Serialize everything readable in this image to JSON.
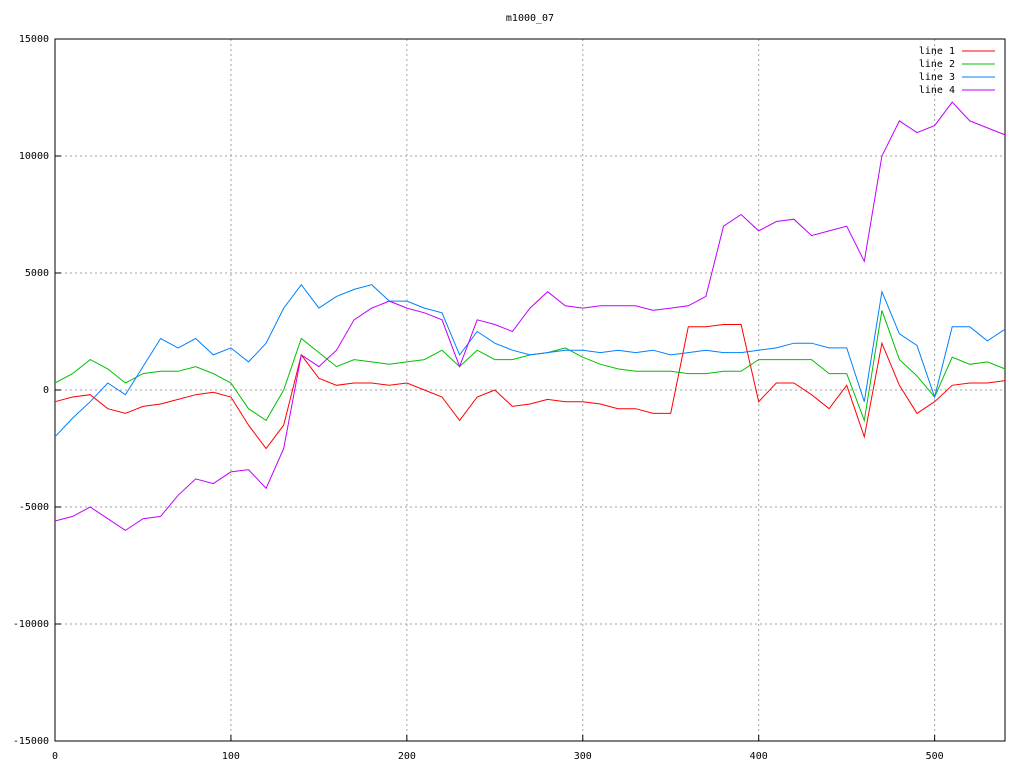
{
  "chart_data": {
    "type": "line",
    "title": "m1000_07",
    "x": [
      0,
      10,
      20,
      30,
      40,
      50,
      60,
      70,
      80,
      90,
      100,
      110,
      120,
      130,
      140,
      150,
      160,
      170,
      180,
      190,
      200,
      210,
      220,
      230,
      240,
      250,
      260,
      270,
      280,
      290,
      300,
      310,
      320,
      330,
      340,
      350,
      360,
      370,
      380,
      390,
      400,
      410,
      420,
      430,
      440,
      450,
      460,
      470,
      480,
      490,
      500,
      510,
      520,
      530,
      540
    ],
    "series": [
      {
        "name": "line 1",
        "color": "#ff0000",
        "values": [
          -500,
          -300,
          -200,
          -800,
          -1000,
          -700,
          -600,
          -400,
          -200,
          -100,
          -300,
          -1500,
          -2500,
          -1500,
          1500,
          500,
          200,
          300,
          300,
          200,
          300,
          0,
          -300,
          -1300,
          -300,
          0,
          -700,
          -600,
          -400,
          -500,
          -500,
          -600,
          -800,
          -800,
          -1000,
          -1000,
          2700,
          2700,
          2800,
          2800,
          -500,
          300,
          300,
          -200,
          -800,
          200,
          -2000,
          2000,
          200,
          -1000,
          -500,
          200,
          300,
          300,
          400
        ]
      },
      {
        "name": "line 2",
        "color": "#00c000",
        "values": [
          300,
          700,
          1300,
          900,
          300,
          700,
          800,
          800,
          1000,
          700,
          300,
          -800,
          -1300,
          0,
          2200,
          1600,
          1000,
          1300,
          1200,
          1100,
          1200,
          1300,
          1700,
          1000,
          1700,
          1300,
          1300,
          1500,
          1600,
          1800,
          1400,
          1100,
          900,
          800,
          800,
          800,
          700,
          700,
          800,
          800,
          1300,
          1300,
          1300,
          1300,
          700,
          700,
          -1300,
          3400,
          1300,
          600,
          -300,
          1400,
          1100,
          1200,
          900
        ]
      },
      {
        "name": "line 3",
        "color": "#0080ff",
        "values": [
          -2000,
          -1200,
          -500,
          300,
          -200,
          1000,
          2200,
          1800,
          2200,
          1500,
          1800,
          1200,
          2000,
          3500,
          4500,
          3500,
          4000,
          4300,
          4500,
          3800,
          3800,
          3500,
          3300,
          1500,
          2500,
          2000,
          1700,
          1500,
          1600,
          1700,
          1700,
          1600,
          1700,
          1600,
          1700,
          1500,
          1600,
          1700,
          1600,
          1600,
          1700,
          1800,
          2000,
          2000,
          1800,
          1800,
          -500,
          4200,
          2400,
          1900,
          -300,
          2700,
          2700,
          2100,
          2600
        ]
      },
      {
        "name": "line 4",
        "color": "#c000ff",
        "values": [
          -5600,
          -5400,
          -5000,
          -5500,
          -6000,
          -5500,
          -5400,
          -4500,
          -3800,
          -4000,
          -3500,
          -3400,
          -4200,
          -2500,
          1500,
          1000,
          1700,
          3000,
          3500,
          3800,
          3500,
          3300,
          3000,
          1000,
          3000,
          2800,
          2500,
          3500,
          4200,
          3600,
          3500,
          3600,
          3600,
          3600,
          3400,
          3500,
          3600,
          4000,
          7000,
          7500,
          6800,
          7200,
          7300,
          6600,
          6800,
          7000,
          5500,
          10000,
          11500,
          11000,
          11300,
          12300,
          11500,
          11200,
          10900
        ]
      }
    ],
    "xlim": [
      0,
      540
    ],
    "ylim": [
      -15000,
      15000
    ],
    "xticks": [
      0,
      100,
      200,
      300,
      400,
      500
    ],
    "yticks": [
      -15000,
      -10000,
      -5000,
      0,
      5000,
      10000,
      15000
    ],
    "grid": true,
    "legend": "top-right"
  }
}
